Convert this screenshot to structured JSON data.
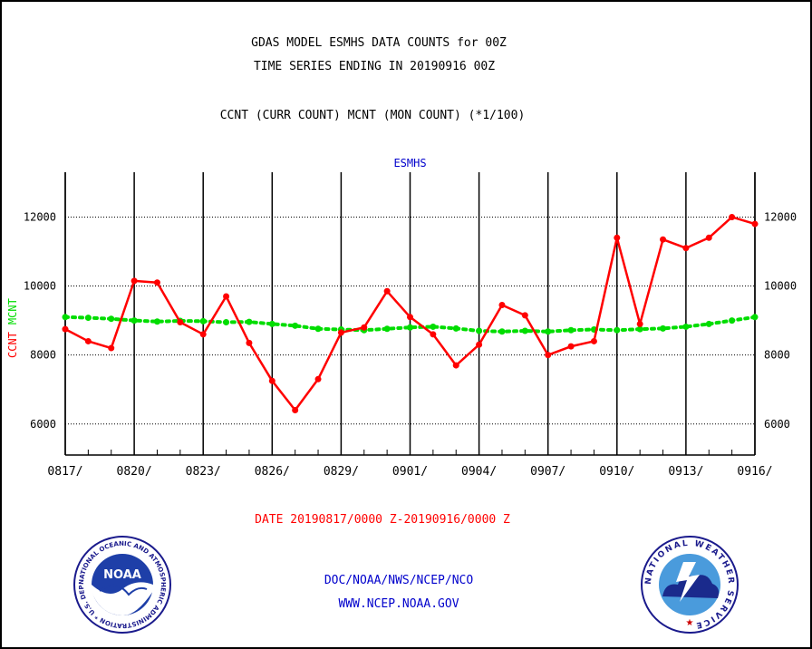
{
  "header": {
    "line1": "GDAS MODEL ESMHS DATA COUNTS for 00Z",
    "line2": "TIME SERIES ENDING IN 20190916 00Z",
    "line3": "CCNT (CURR COUNT) MCNT (MON COUNT) (*1/100)"
  },
  "footer": {
    "date_range": "DATE 20190817/0000 Z-20190916/0000 Z",
    "org": "DOC/NOAA/NWS/NCEP/NCO",
    "url": "WWW.NCEP.NOAA.GOV"
  },
  "colors": {
    "ccnt": "#ff0000",
    "mcnt": "#00dd00",
    "title_blue": "#0000cc",
    "date_red": "#ff0000"
  },
  "chart_data": {
    "type": "line",
    "title": "ESMHS",
    "ylabel_ccnt": "CCNT",
    "ylabel_mcnt": "MCNT",
    "ylim": [
      5100,
      13300
    ],
    "yticks": [
      6000,
      8000,
      10000,
      12000
    ],
    "grid": true,
    "x": [
      "0817",
      "0818",
      "0819",
      "0820",
      "0821",
      "0822",
      "0823",
      "0824",
      "0825",
      "0826",
      "0827",
      "0828",
      "0829",
      "0830",
      "0831",
      "0901",
      "0902",
      "0903",
      "0904",
      "0905",
      "0906",
      "0907",
      "0908",
      "0909",
      "0910",
      "0911",
      "0912",
      "0913",
      "0914",
      "0915",
      "0916"
    ],
    "xtick_labels": [
      "0817/",
      "0820/",
      "0823/",
      "0826/",
      "0829/",
      "0901/",
      "0904/",
      "0907/",
      "0910/",
      "0913/",
      "0916/"
    ],
    "series": [
      {
        "name": "CCNT",
        "color": "#ff0000",
        "style": "solid",
        "values": [
          8750,
          8400,
          8200,
          10150,
          10100,
          8950,
          8600,
          9700,
          8350,
          7250,
          6400,
          7300,
          8650,
          8800,
          9850,
          9100,
          8600,
          7700,
          8300,
          9450,
          9150,
          8000,
          8250,
          8400,
          11400,
          8900,
          11350,
          11100,
          11400,
          12000,
          11800
        ]
      },
      {
        "name": "MCNT",
        "color": "#00dd00",
        "style": "dotted",
        "values": [
          9100,
          9080,
          9050,
          9000,
          8970,
          8990,
          8980,
          8950,
          8960,
          8900,
          8850,
          8760,
          8740,
          8720,
          8760,
          8800,
          8820,
          8770,
          8700,
          8680,
          8700,
          8680,
          8720,
          8740,
          8720,
          8750,
          8770,
          8820,
          8900,
          9000,
          9100
        ]
      }
    ]
  },
  "logos": {
    "noaa_text": "NOAA",
    "noaa_ring": "NATIONAL OCEANIC AND ATMOSPHERIC ADMINISTRATION * U.S. DEPARTMENT OF COMMERCE",
    "nws_ring": "NATIONAL WEATHER SERVICE"
  }
}
